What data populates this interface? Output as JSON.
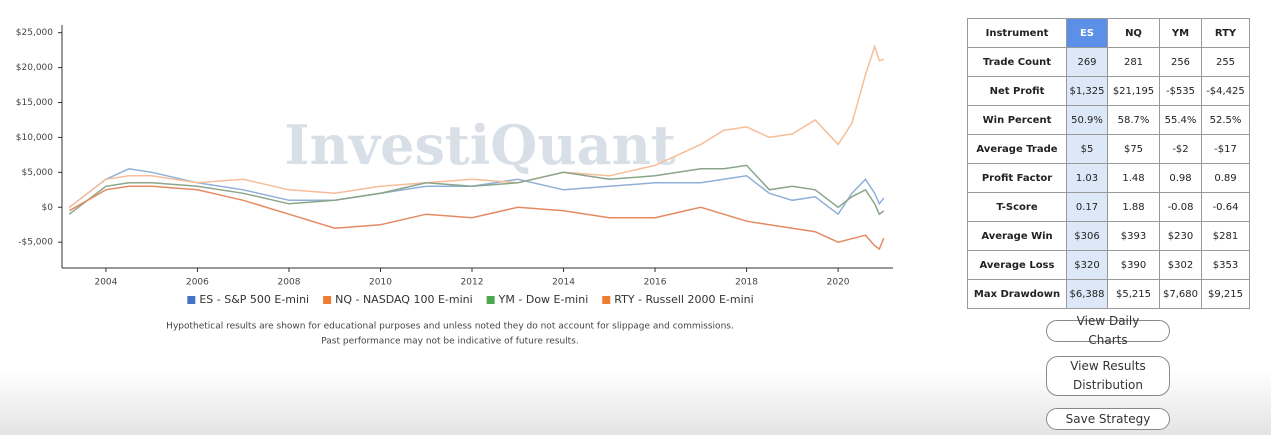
{
  "chart_data": {
    "type": "line",
    "watermark": "InvestiQuant",
    "x": [
      2003.2,
      2004,
      2004.5,
      2005,
      2006,
      2007,
      2008,
      2009,
      2010,
      2011,
      2012,
      2013,
      2014,
      2015,
      2016,
      2017,
      2017.5,
      2018,
      2018.5,
      2019,
      2019.5,
      2020,
      2020.3,
      2020.6,
      2020.8,
      2020.9,
      2021
    ],
    "series": [
      {
        "name": "ES - S&P 500 E-mini",
        "color": "#4472c4",
        "line_color": "#8fb0d8",
        "values": [
          0,
          4000,
          5500,
          5000,
          3500,
          2500,
          1000,
          1000,
          2000,
          3000,
          3000,
          4000,
          2500,
          3000,
          3500,
          3500,
          4000,
          4500,
          2000,
          1000,
          1500,
          -1000,
          2000,
          4000,
          2000,
          500,
          1325
        ]
      },
      {
        "name": "NQ - NASDAQ 100 E-mini",
        "color": "#ed7d31",
        "line_color": "#f6be98",
        "values": [
          0,
          4000,
          4500,
          4500,
          3500,
          4000,
          2500,
          2000,
          3000,
          3500,
          4000,
          3500,
          5000,
          4500,
          6000,
          9000,
          11000,
          11500,
          10000,
          10500,
          12500,
          9000,
          12000,
          19000,
          23000,
          21000,
          21195
        ]
      },
      {
        "name": "YM - Dow E-mini",
        "color": "#4ca64c",
        "line_color": "#8aa58a",
        "values": [
          -1000,
          3000,
          3500,
          3500,
          3000,
          2000,
          500,
          1000,
          2000,
          3500,
          3000,
          3500,
          5000,
          4000,
          4500,
          5500,
          5500,
          6000,
          2500,
          3000,
          2500,
          0,
          1500,
          2500,
          500,
          -1000,
          -535
        ]
      },
      {
        "name": "RTY - Russell 2000 E-mini",
        "color": "#ed7d31",
        "line_color": "#e58a62",
        "values": [
          -500,
          2500,
          3000,
          3000,
          2500,
          1000,
          -1000,
          -3000,
          -2500,
          -1000,
          -1500,
          0,
          -500,
          -1500,
          -1500,
          0,
          -1000,
          -2000,
          -2500,
          -3000,
          -3500,
          -5000,
          -4500,
          -4000,
          -5500,
          -6000,
          -4425
        ]
      }
    ],
    "xlim": [
      2003.04,
      2021.2
    ],
    "xticks": [
      2004,
      2006,
      2008,
      2010,
      2012,
      2014,
      2016,
      2018,
      2020
    ],
    "ylim": [
      -8700,
      26100
    ],
    "yticks": [
      {
        "value": -5000,
        "label": "-$5,000"
      },
      {
        "value": 0,
        "label": "$0"
      },
      {
        "value": 5000,
        "label": "$5,000"
      },
      {
        "value": 10000,
        "label": "$10,000"
      },
      {
        "value": 15000,
        "label": "$15,000"
      },
      {
        "value": 20000,
        "label": "$20,000"
      },
      {
        "value": 25000,
        "label": "$25,000"
      }
    ],
    "grid": false,
    "legend": "bottom"
  },
  "disclaimer": [
    "Hypothetical results are shown for educational purposes and unless noted they do not account for slippage and commissions.",
    "Past performance may not be indicative of future results."
  ],
  "table": {
    "header": [
      "Instrument",
      "ES",
      "NQ",
      "YM",
      "RTY"
    ],
    "rows": [
      [
        "Trade Count",
        "269",
        "281",
        "256",
        "255"
      ],
      [
        "Net Profit",
        "$1,325",
        "$21,195",
        "-$535",
        "-$4,425"
      ],
      [
        "Win Percent",
        "50.9%",
        "58.7%",
        "55.4%",
        "52.5%"
      ],
      [
        "Average Trade",
        "$5",
        "$75",
        "-$2",
        "-$17"
      ],
      [
        "Profit Factor",
        "1.03",
        "1.48",
        "0.98",
        "0.89"
      ],
      [
        "T-Score",
        "0.17",
        "1.88",
        "-0.08",
        "-0.64"
      ],
      [
        "Average Win",
        "$306",
        "$393",
        "$230",
        "$281"
      ],
      [
        "Average Loss",
        "$320",
        "$390",
        "$302",
        "$353"
      ],
      [
        "Max Drawdown",
        "$6,388",
        "$5,215",
        "$7,680",
        "$9,215"
      ]
    ]
  },
  "buttons": [
    "View Daily Charts",
    "View Results Distribution",
    "Save Strategy"
  ]
}
